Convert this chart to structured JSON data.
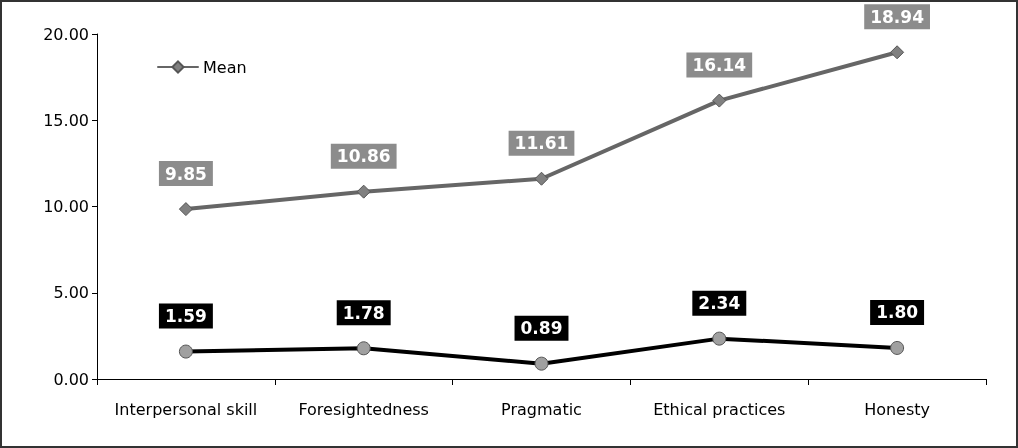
{
  "chart_data": {
    "type": "line",
    "categories": [
      "Interpersonal skill",
      "Foresightedness",
      "Pragmatic",
      "Ethical practices",
      "Honesty"
    ],
    "series": [
      {
        "name": "Mean",
        "color": "#666666",
        "marker": "diamond",
        "values": [
          9.85,
          10.86,
          11.61,
          16.14,
          18.94
        ],
        "value_labels": [
          "9.85",
          "10.86",
          "11.61",
          "16.14",
          "18.94"
        ]
      },
      {
        "color": "#000000",
        "marker": "circle",
        "values": [
          1.59,
          1.78,
          0.89,
          2.34,
          1.8
        ],
        "value_labels": [
          "1.59",
          "1.78",
          "0.89",
          "2.34",
          "1.80"
        ]
      }
    ],
    "ylim": [
      0,
      20
    ],
    "yticks": [
      {
        "value": 0,
        "label": "0.00"
      },
      {
        "value": 5,
        "label": "5.00"
      },
      {
        "value": 10,
        "label": "10.00"
      },
      {
        "value": 15,
        "label": "15.00"
      },
      {
        "value": 20,
        "label": "20.00"
      }
    ],
    "legend": "top left"
  }
}
